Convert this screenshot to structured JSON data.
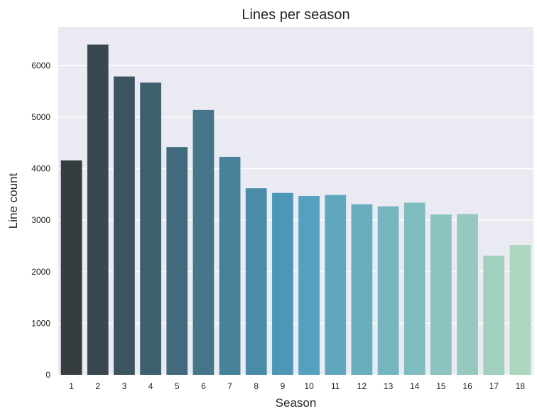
{
  "chart_data": {
    "type": "bar",
    "title": "Lines per season",
    "xlabel": "Season",
    "ylabel": "Line count",
    "categories": [
      "1",
      "2",
      "3",
      "4",
      "5",
      "6",
      "7",
      "8",
      "9",
      "10",
      "11",
      "12",
      "13",
      "14",
      "15",
      "16",
      "17",
      "18"
    ],
    "values": [
      4160,
      6410,
      5790,
      5670,
      4420,
      5140,
      4230,
      3620,
      3530,
      3470,
      3490,
      3310,
      3270,
      3340,
      3110,
      3120,
      2310,
      2520
    ],
    "yticks": [
      0,
      1000,
      2000,
      3000,
      4000,
      5000,
      6000
    ],
    "ylim": [
      0,
      6750
    ],
    "grid": true,
    "background": "#EAEAF2",
    "grid_color": "#FFFFFF",
    "palette": {
      "start": "#363D41",
      "mid": "#4D9DBF",
      "end": "#ABD7BF"
    }
  }
}
